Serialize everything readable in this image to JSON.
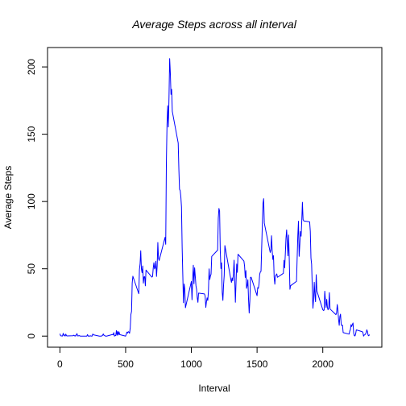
{
  "chart_data": {
    "type": "line",
    "title": "Average Steps across all interval",
    "x_label": "Interval",
    "y_label": "Average Steps",
    "color": "#0000ff",
    "title_color": "#ee0000",
    "xlim": [
      -94.2,
      2449.2
    ],
    "ylim": [
      -8.2468,
      214.4168
    ],
    "xticks": [
      0,
      500,
      1000,
      1500,
      2000
    ],
    "yticks": [
      0,
      50,
      100,
      150,
      200
    ],
    "grid": false,
    "x": [
      0,
      5,
      10,
      15,
      20,
      25,
      30,
      35,
      40,
      45,
      50,
      55,
      100,
      105,
      110,
      115,
      120,
      125,
      130,
      135,
      140,
      145,
      150,
      155,
      200,
      205,
      210,
      215,
      220,
      225,
      230,
      235,
      240,
      245,
      250,
      255,
      300,
      305,
      310,
      315,
      320,
      325,
      330,
      335,
      340,
      345,
      350,
      355,
      400,
      405,
      410,
      415,
      420,
      425,
      430,
      435,
      440,
      445,
      450,
      455,
      500,
      505,
      510,
      515,
      520,
      525,
      530,
      535,
      540,
      545,
      550,
      555,
      600,
      605,
      610,
      615,
      620,
      625,
      630,
      635,
      640,
      645,
      650,
      655,
      700,
      705,
      710,
      715,
      720,
      725,
      730,
      735,
      740,
      745,
      750,
      755,
      800,
      805,
      810,
      815,
      820,
      825,
      830,
      835,
      840,
      845,
      850,
      855,
      900,
      905,
      910,
      915,
      920,
      925,
      930,
      935,
      940,
      945,
      950,
      955,
      1000,
      1005,
      1010,
      1015,
      1020,
      1025,
      1030,
      1035,
      1040,
      1045,
      1050,
      1055,
      1100,
      1105,
      1110,
      1115,
      1120,
      1125,
      1130,
      1135,
      1140,
      1145,
      1150,
      1155,
      1200,
      1205,
      1210,
      1215,
      1220,
      1225,
      1230,
      1235,
      1240,
      1245,
      1250,
      1255,
      1300,
      1305,
      1310,
      1315,
      1320,
      1325,
      1330,
      1335,
      1340,
      1345,
      1350,
      1355,
      1400,
      1405,
      1410,
      1415,
      1420,
      1425,
      1430,
      1435,
      1440,
      1445,
      1450,
      1455,
      1500,
      1505,
      1510,
      1515,
      1520,
      1525,
      1530,
      1535,
      1540,
      1545,
      1550,
      1555,
      1600,
      1605,
      1610,
      1615,
      1620,
      1625,
      1630,
      1635,
      1640,
      1645,
      1650,
      1655,
      1700,
      1705,
      1710,
      1715,
      1720,
      1725,
      1730,
      1735,
      1740,
      1745,
      1750,
      1755,
      1800,
      1805,
      1810,
      1815,
      1820,
      1825,
      1830,
      1835,
      1840,
      1845,
      1850,
      1855,
      1900,
      1905,
      1910,
      1915,
      1920,
      1925,
      1930,
      1935,
      1940,
      1945,
      1950,
      1955,
      2000,
      2005,
      2010,
      2015,
      2020,
      2025,
      2030,
      2035,
      2040,
      2045,
      2050,
      2055,
      2100,
      2105,
      2110,
      2115,
      2120,
      2125,
      2130,
      2135,
      2140,
      2145,
      2150,
      2155,
      2200,
      2205,
      2210,
      2215,
      2220,
      2225,
      2230,
      2235,
      2240,
      2245,
      2250,
      2255,
      2300,
      2305,
      2310,
      2315,
      2320,
      2325,
      2330,
      2335,
      2340,
      2345,
      2350,
      2355
    ],
    "values": [
      1.72,
      0.34,
      0.13,
      0.15,
      0.08,
      2.09,
      0.53,
      0.87,
      0,
      1.47,
      0.3,
      0.13,
      0.32,
      0.68,
      0.15,
      0.34,
      0,
      1.11,
      1.83,
      0.17,
      0.17,
      0.38,
      0.26,
      0,
      0,
      0,
      1.13,
      0,
      0,
      0.13,
      0,
      0.23,
      0,
      0,
      1.55,
      0.94,
      0,
      0,
      0,
      0,
      0.21,
      0.62,
      1.62,
      0.58,
      0.49,
      0.08,
      0,
      0,
      1.19,
      0.94,
      2.57,
      0,
      0.34,
      0.36,
      4.11,
      0.66,
      3.49,
      0.83,
      3.11,
      1.11,
      0,
      1.57,
      3,
      2.25,
      3.32,
      2.96,
      2.09,
      6.06,
      16.02,
      18.34,
      39.45,
      44.49,
      31.49,
      49.26,
      53.77,
      63.45,
      49.96,
      47.08,
      52.15,
      39.34,
      44.02,
      44.17,
      37.36,
      49.04,
      43.81,
      44.38,
      50.51,
      54.51,
      49.92,
      50.98,
      55.68,
      44.32,
      52.26,
      69.55,
      57.85,
      56.15,
      73.38,
      68.21,
      129.43,
      157.53,
      171.15,
      155.4,
      177.3,
      206.17,
      195.92,
      179.57,
      183.4,
      167.02,
      143.45,
      124.04,
      109.11,
      108.11,
      103.72,
      95.96,
      66.21,
      45.23,
      24.79,
      38.75,
      34.98,
      21.06,
      40.57,
      26.98,
      42.42,
      52.66,
      38.92,
      50.79,
      44.28,
      37.42,
      34.7,
      28.34,
      25.09,
      31.94,
      31.36,
      29.68,
      21.32,
      25.55,
      28.38,
      26.47,
      33.43,
      49.98,
      42.04,
      44.6,
      46.04,
      59.19,
      63.87,
      87.7,
      94.85,
      92.77,
      63.4,
      50.17,
      54.47,
      32.42,
      26.53,
      37.74,
      45.06,
      67.28,
      42.34,
      39.89,
      43.26,
      40.98,
      46.25,
      56.43,
      42.75,
      25.13,
      39.96,
      53.55,
      47.32,
      60.81,
      55.75,
      51.96,
      43.58,
      48.7,
      35.47,
      37.55,
      41.85,
      27.51,
      17.11,
      26.08,
      43.62,
      43.77,
      30.02,
      36.08,
      35.49,
      38.85,
      45.96,
      47.75,
      48.13,
      65.32,
      82.91,
      98.66,
      102.11,
      83.96,
      62.13,
      64.13,
      74.55,
      63.17,
      56.91,
      59.77,
      43.87,
      38.57,
      44.66,
      45.45,
      46.21,
      43.68,
      46.62,
      56.3,
      50.72,
      61.23,
      72.72,
      78.94,
      68.94,
      59.66,
      75.09,
      56.51,
      34.77,
      37.45,
      40.68,
      58.02,
      74.7,
      85.32,
      59.26,
      67.77,
      77.7,
      74.25,
      85.34,
      99.45,
      86.58,
      85.6,
      84.87,
      77.83,
      58.04,
      53.36,
      36.33,
      20.72,
      27.4,
      40.02,
      30.21,
      25.55,
      45.66,
      33.53,
      19.62,
      19.02,
      19.34,
      33.34,
      26.81,
      21.17,
      27.3,
      21.34,
      19.55,
      21.32,
      32.3,
      20.15,
      15.94,
      17.23,
      23.45,
      19.25,
      12.45,
      8.02,
      14.66,
      16.3,
      8.68,
      7.79,
      8.13,
      2.62,
      1.45,
      3.68,
      4.81,
      8.51,
      7.08,
      8.7,
      9.75,
      2.21,
      0.32,
      0.11,
      1.6,
      4.6,
      3.3,
      2.85,
      0,
      0.83,
      0.96,
      1.58,
      2.6,
      4.7,
      3.3,
      0.64,
      0.23,
      1.08
    ]
  }
}
